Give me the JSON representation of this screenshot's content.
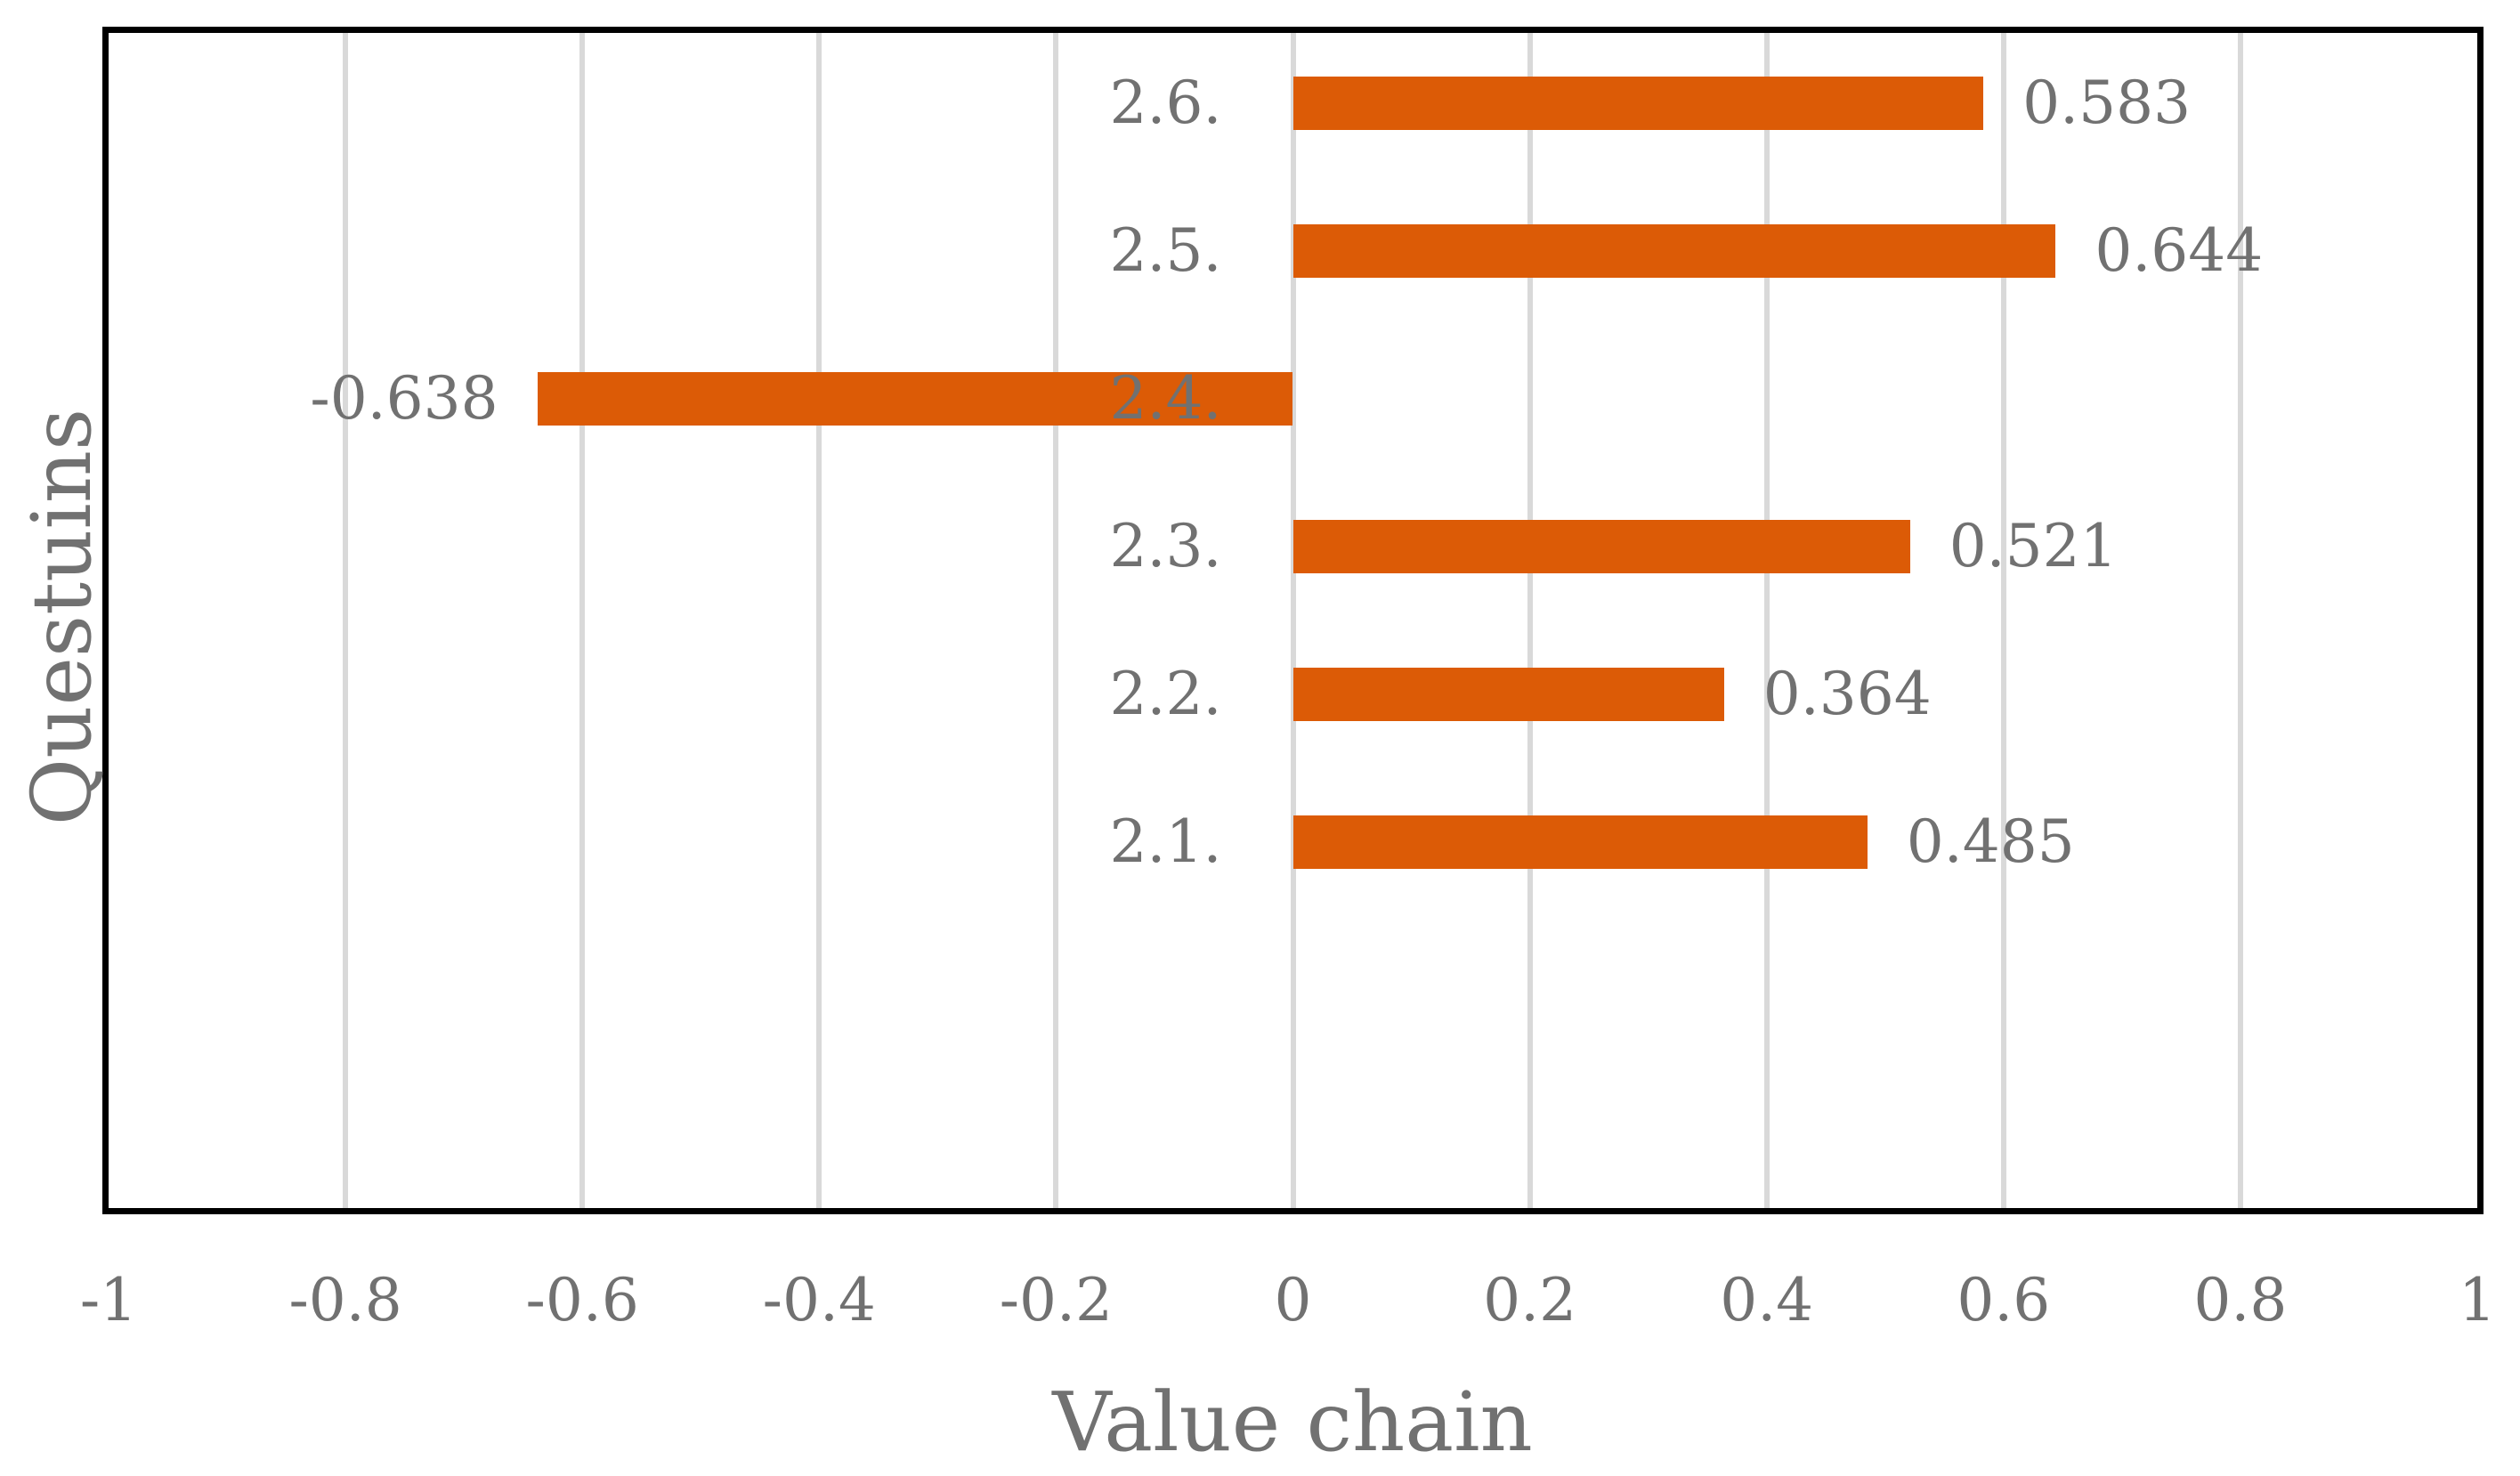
{
  "chart_data": {
    "type": "bar",
    "orientation": "horizontal",
    "title": "",
    "xlabel": "Value chain",
    "ylabel": "Questuins",
    "categories": [
      "2.6.",
      "2.5.",
      "2.4.",
      "2.3.",
      "2.2.",
      "2.1."
    ],
    "values": [
      0.583,
      0.644,
      -0.638,
      0.521,
      0.364,
      0.485
    ],
    "value_labels": [
      "0.583",
      "0.644",
      "-0.638",
      "0.521",
      "0.364",
      "0.485"
    ],
    "xlim": [
      -1,
      1
    ],
    "x_ticks": [
      -1,
      -0.8,
      -0.6,
      -0.4,
      -0.2,
      0,
      0.2,
      0.4,
      0.6,
      0.8,
      1
    ],
    "x_tick_labels": [
      "-1",
      "-0.8",
      "-0.6",
      "-0.4",
      "-0.2",
      "0",
      "0.2",
      "0.4",
      "0.6",
      "0.8",
      "1"
    ],
    "grid": true,
    "legend": false,
    "data_labels": true,
    "colors": {
      "bar": "#DC5B06",
      "label_text": "#717171",
      "gridline": "#D9D9D9",
      "plot_border": "#000000",
      "background": "#FFFFFF"
    }
  }
}
